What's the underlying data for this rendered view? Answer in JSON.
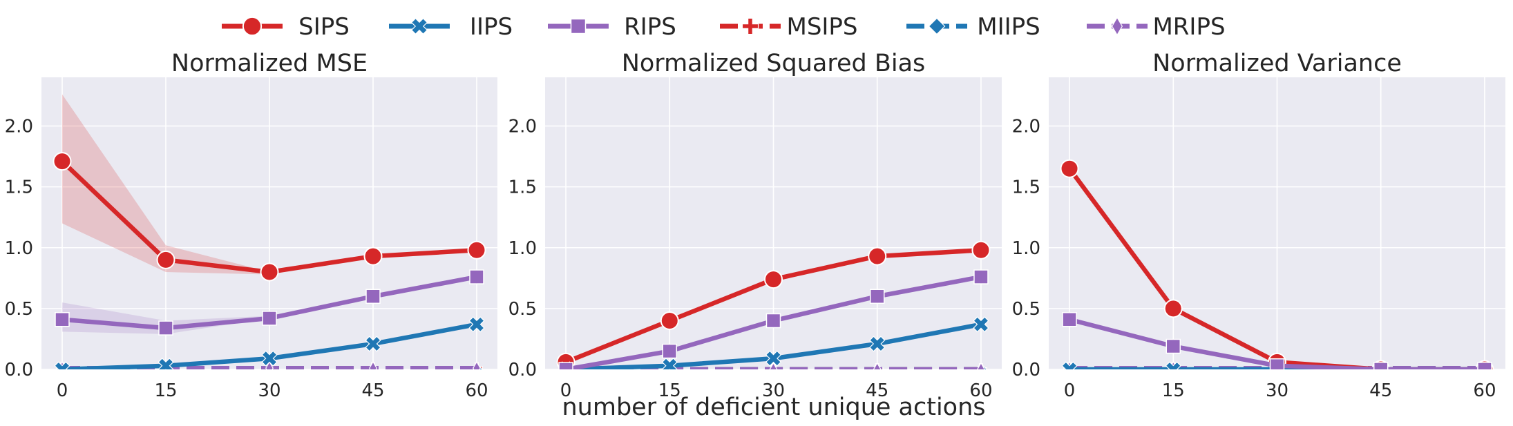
{
  "legend": {
    "entries": [
      {
        "label": "SIPS",
        "color": "#d62728",
        "marker": "circle",
        "dashed": false
      },
      {
        "label": "IIPS",
        "color": "#1f77b4",
        "marker": "x",
        "dashed": false
      },
      {
        "label": "RIPS",
        "color": "#9467bd",
        "marker": "square",
        "dashed": false
      },
      {
        "label": "MSIPS",
        "color": "#d62728",
        "marker": "plus",
        "dashed": true
      },
      {
        "label": "MIIPS",
        "color": "#1f77b4",
        "marker": "diamond",
        "dashed": true
      },
      {
        "label": "MRIPS",
        "color": "#9467bd",
        "marker": "thin-diamond",
        "dashed": true
      }
    ],
    "placement": "top-center"
  },
  "xlabel": "number of deficient unique actions",
  "chart_data": [
    {
      "type": "line",
      "title": "Normalized MSE",
      "x": [
        0,
        15,
        30,
        45,
        60
      ],
      "xticks": [
        "0",
        "15",
        "30",
        "45",
        "60"
      ],
      "yticks": [
        "0.0",
        "0.5",
        "1.0",
        "1.5",
        "2.0"
      ],
      "ylim": [
        0,
        2.4
      ],
      "grid": true,
      "series": [
        {
          "name": "SIPS",
          "values": [
            1.71,
            0.9,
            0.8,
            0.93,
            0.98
          ],
          "band_low": [
            1.2,
            0.8,
            0.78,
            0.93,
            0.98
          ],
          "band_high": [
            2.26,
            1.02,
            0.8,
            0.93,
            0.98
          ]
        },
        {
          "name": "IIPS",
          "values": [
            0.0,
            0.03,
            0.09,
            0.21,
            0.37
          ]
        },
        {
          "name": "RIPS",
          "values": [
            0.41,
            0.34,
            0.42,
            0.6,
            0.76
          ],
          "band_low": [
            0.31,
            0.29,
            0.42,
            0.6,
            0.76
          ],
          "band_high": [
            0.55,
            0.4,
            0.44,
            0.6,
            0.76
          ]
        },
        {
          "name": "MSIPS",
          "values": [
            0.01,
            0.01,
            0.01,
            0.01,
            0.01
          ]
        },
        {
          "name": "MIIPS",
          "values": [
            0.0,
            0.0,
            0.0,
            0.0,
            0.0
          ]
        },
        {
          "name": "MRIPS",
          "values": [
            0.01,
            0.01,
            0.01,
            0.01,
            0.01
          ]
        }
      ]
    },
    {
      "type": "line",
      "title": "Normalized Squared Bias",
      "x": [
        0,
        15,
        30,
        45,
        60
      ],
      "xticks": [
        "0",
        "15",
        "30",
        "45",
        "60"
      ],
      "yticks": [
        "0.0",
        "0.5",
        "1.0",
        "1.5",
        "2.0"
      ],
      "ylim": [
        0,
        2.4
      ],
      "grid": true,
      "series": [
        {
          "name": "SIPS",
          "values": [
            0.06,
            0.4,
            0.74,
            0.93,
            0.98
          ]
        },
        {
          "name": "IIPS",
          "values": [
            0.0,
            0.03,
            0.09,
            0.21,
            0.37
          ]
        },
        {
          "name": "RIPS",
          "values": [
            0.0,
            0.15,
            0.4,
            0.6,
            0.76
          ]
        },
        {
          "name": "MSIPS",
          "values": [
            0.0,
            0.0,
            0.0,
            0.0,
            0.0
          ]
        },
        {
          "name": "MIIPS",
          "values": [
            0.0,
            0.0,
            0.0,
            0.0,
            0.0
          ]
        },
        {
          "name": "MRIPS",
          "values": [
            0.0,
            0.0,
            0.0,
            0.0,
            0.0
          ]
        }
      ]
    },
    {
      "type": "line",
      "title": "Normalized Variance",
      "x": [
        0,
        15,
        30,
        45,
        60
      ],
      "xticks": [
        "0",
        "15",
        "30",
        "45",
        "60"
      ],
      "yticks": [
        "0.0",
        "0.5",
        "1.0",
        "1.5",
        "2.0"
      ],
      "ylim": [
        0,
        2.4
      ],
      "grid": true,
      "series": [
        {
          "name": "SIPS",
          "values": [
            1.65,
            0.5,
            0.06,
            0.0,
            0.0
          ]
        },
        {
          "name": "IIPS",
          "values": [
            0.0,
            0.0,
            0.0,
            0.0,
            0.0
          ]
        },
        {
          "name": "RIPS",
          "values": [
            0.41,
            0.19,
            0.03,
            0.0,
            0.0
          ]
        },
        {
          "name": "MSIPS",
          "values": [
            0.01,
            0.01,
            0.01,
            0.01,
            0.01
          ]
        },
        {
          "name": "MIIPS",
          "values": [
            0.0,
            0.0,
            0.0,
            0.0,
            0.0
          ]
        },
        {
          "name": "MRIPS",
          "values": [
            0.01,
            0.01,
            0.01,
            0.01,
            0.01
          ]
        }
      ]
    }
  ]
}
